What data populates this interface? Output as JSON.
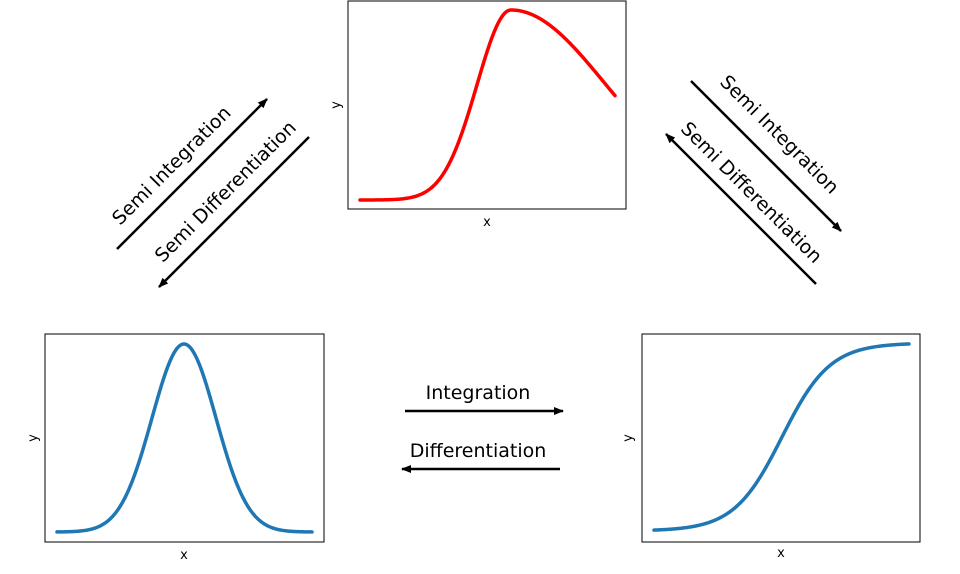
{
  "colors": {
    "top_curve": "#ff0000",
    "bottom_curves": "#1f77b4",
    "arrows": "#000000"
  },
  "plots": {
    "top": {
      "xlabel": "x",
      "ylabel": "y"
    },
    "bottom_left": {
      "xlabel": "x",
      "ylabel": "y"
    },
    "bottom_right": {
      "xlabel": "x",
      "ylabel": "y"
    }
  },
  "arrows": {
    "integration": "Integration",
    "differentiation": "Differentiation",
    "left_semi_integration": "Semi Integration",
    "left_semi_differentiation": "Semi Differentiation",
    "right_semi_integration": "Semi Integration",
    "right_semi_differentiation": "Semi Differentiation"
  }
}
